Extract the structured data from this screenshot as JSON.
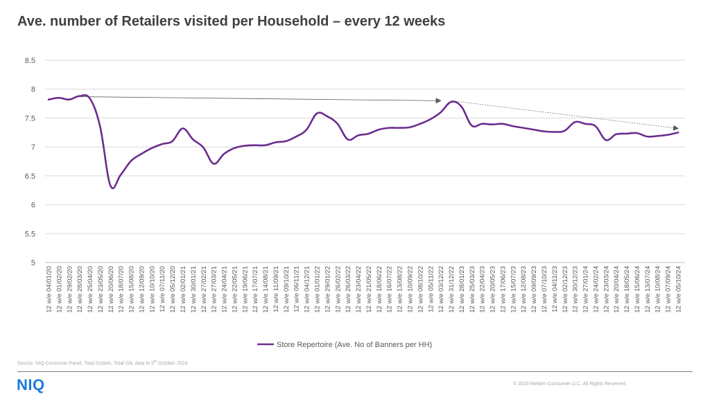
{
  "header": {
    "title": "Ave. number of Retailers visited per Household – every 12 weeks"
  },
  "footer": {
    "source_prefix": "Source: NIQ Consumer Panel, Total Outlets, Total GB, data to 5",
    "source_sup": "th",
    "source_suffix": " October 2024",
    "logo": "NIQ",
    "copyright": "© 2023 Nielsen Consumer LLC. All Rights Reserved."
  },
  "colors": {
    "series": "#6a2c8e",
    "grid": "#d9d9d9",
    "trend": "#595959",
    "logo": "#1a7ad9"
  },
  "chart_data": {
    "type": "line",
    "title": "Ave. number of Retailers visited per Household – every 12 weeks",
    "xlabel": "",
    "ylabel": "",
    "ylim": [
      5,
      8.5
    ],
    "yticks": [
      "5",
      "5.5",
      "6",
      "6.5",
      "7",
      "7.5",
      "8",
      "8.5"
    ],
    "grid": true,
    "legend_position": "bottom",
    "categories": [
      "12 w/e 04/01/20",
      "12 w/e 01/02/20",
      "12 w/e 29/02/20",
      "12 w/e 28/03/20",
      "12 w/e 25/04/20",
      "12 w/e 23/05/20",
      "12 w/e 20/06/20",
      "12 w/e 18/07/20",
      "12 w/e 15/08/20",
      "12 w/e 12/09/20",
      "12 w/e 10/10/20",
      "12 w/e 07/11/20",
      "12 w/e 05/12/20",
      "12 w/e 02/01/21",
      "12 w/e 30/01/21",
      "12 w/e 27/02/21",
      "12 w/e 27/03/21",
      "12 w/e 24/04/21",
      "12 w/e 22/05/21",
      "12 w/e 19/06/21",
      "12 w/e 17/07/21",
      "12 w/e 14/08/21",
      "12 w/e 11/09/21",
      "12 w/e 09/10/21",
      "12 w/e 06/11/21",
      "12 w/e 04/12/21",
      "12 w/e 01/01/22",
      "12 w/e 29/01/22",
      "12 w/e 26/02/22",
      "12 w/e 26/03/22",
      "12 w/e 23/04/22",
      "12 w/e 21/05/22",
      "12 w/e 18/06/22",
      "12 w/e 16/07/22",
      "12 w/e 13/08/22",
      "12 w/e 10/09/22",
      "12 w/e 08/10/22",
      "12 w/e 05/11/22",
      "12 w/e 03/12/22",
      "12 w/e 31/12/22",
      "12 w/e 28/01/23",
      "12 w/e 25/03/23",
      "12 w/e 22/04/23",
      "12 w/e 20/05/23",
      "12 w/e 17/06/23",
      "12 w/e 15/07/23",
      "12 w/e 12/08/23",
      "12 w/e 09/09/23",
      "12 w/e 07/10/23",
      "12 w/e 04/11/23",
      "12 w/e 02/12/23",
      "12 w/e 30/12/23",
      "12 w/e 27/01/24",
      "12 w/e 24/02/24",
      "12 w/e 23/03/24",
      "12 w/e 20/04/24",
      "12 w/e 18/05/24",
      "12 w/e 15/06/24",
      "12 w/e 13/07/24",
      "12 w/e 10/08/24",
      "12 w/e 07/09/24",
      "12 w/e 05/10/24"
    ],
    "series": [
      {
        "name": "Store Repertoire (Ave. No of Banners per HH)",
        "values": [
          7.82,
          7.85,
          7.82,
          7.88,
          7.84,
          7.35,
          6.33,
          6.52,
          6.76,
          6.88,
          6.98,
          7.05,
          7.1,
          7.32,
          7.13,
          6.99,
          6.71,
          6.88,
          6.98,
          7.02,
          7.03,
          7.03,
          7.08,
          7.1,
          7.18,
          7.3,
          7.58,
          7.53,
          7.4,
          7.13,
          7.2,
          7.23,
          7.3,
          7.33,
          7.33,
          7.34,
          7.4,
          7.48,
          7.6,
          7.78,
          7.7,
          7.37,
          7.4,
          7.39,
          7.4,
          7.36,
          7.33,
          7.3,
          7.27,
          7.26,
          7.28,
          7.43,
          7.4,
          7.36,
          7.12,
          7.22,
          7.23,
          7.24,
          7.18,
          7.19,
          7.21,
          7.25
        ]
      }
    ],
    "annotations": [
      {
        "type": "arrow",
        "style": "solid",
        "from_index": 3,
        "from_value": 7.87,
        "to_index": 38,
        "to_value": 7.8
      },
      {
        "type": "arrow",
        "style": "dotted",
        "from_index": 39,
        "from_value": 7.8,
        "to_index": 61,
        "to_value": 7.32
      }
    ]
  }
}
